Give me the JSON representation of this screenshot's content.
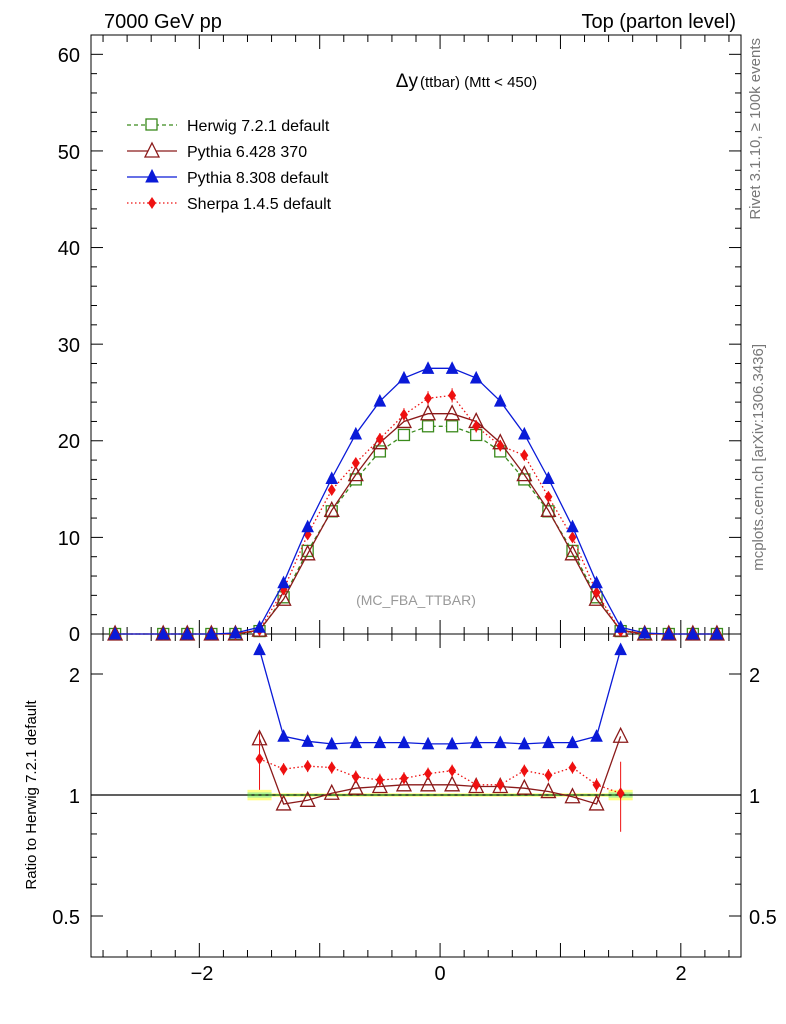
{
  "header": {
    "left": "7000 GeV pp",
    "right": "Top (parton level)"
  },
  "side_labels": {
    "rivet": "Rivet 3.1.10, ≥ 100k events",
    "mcplots": "mcplots.cern.ch [arXiv:1306.3436]"
  },
  "main_plot": {
    "title_symbol": "Δy",
    "title_rest": " (ttbar) (Mtt < 450)",
    "analysis_label": "(MC_FBA_TTBAR)",
    "y_ticks": [
      "0",
      "10",
      "20",
      "30",
      "40",
      "50",
      "60"
    ]
  },
  "ratio_plot": {
    "ylabel": "Ratio to Herwig 7.2.1 default",
    "y_ticks": [
      "0.5",
      "1",
      "2"
    ],
    "y_ticks_right": [
      "0.5",
      "1",
      "2"
    ]
  },
  "x_ticks": [
    "−2",
    "0",
    "2"
  ],
  "legend": [
    {
      "name": "Herwig 7.2.1 default",
      "color": "#3a8a1c",
      "marker": "open-square",
      "line": "dashed"
    },
    {
      "name": "Pythia 6.428 370",
      "color": "#8b1a1a",
      "marker": "open-triangle",
      "line": "solid"
    },
    {
      "name": "Pythia 8.308 default",
      "color": "#0a1ad8",
      "marker": "filled-triangle",
      "line": "solid"
    },
    {
      "name": "Sherpa 1.4.5 default",
      "color": "#ee1111",
      "marker": "filled-diamond",
      "line": "dotted"
    }
  ],
  "chart_data": {
    "type": "line",
    "title": "Δy (ttbar) (Mtt < 450)",
    "xlabel": "",
    "ylabel": "",
    "xlim": [
      -2.9,
      2.5
    ],
    "ylim": [
      0,
      62
    ],
    "x": [
      -2.7,
      -2.3,
      -2.1,
      -1.9,
      -1.7,
      -1.5,
      -1.3,
      -1.1,
      -0.9,
      -0.7,
      -0.5,
      -0.3,
      -0.1,
      0.1,
      0.3,
      0.5,
      0.7,
      0.9,
      1.1,
      1.3,
      1.5,
      1.7,
      1.9,
      2.1,
      2.3
    ],
    "series": [
      {
        "name": "Herwig 7.2.1 default",
        "values": [
          0,
          0,
          0,
          0,
          0,
          0.3,
          3.8,
          8.6,
          12.7,
          16.0,
          18.9,
          20.6,
          21.5,
          21.5,
          20.6,
          18.9,
          16.0,
          12.7,
          8.6,
          3.8,
          0.3,
          0,
          0,
          0,
          0
        ]
      },
      {
        "name": "Pythia 6.428 370",
        "values": [
          0,
          0,
          0,
          0,
          0,
          0.4,
          3.6,
          8.3,
          12.8,
          16.5,
          19.8,
          22.0,
          22.8,
          22.8,
          22.0,
          19.8,
          16.5,
          12.8,
          8.3,
          3.6,
          0.4,
          0,
          0,
          0,
          0
        ]
      },
      {
        "name": "Pythia 8.308 default",
        "values": [
          0,
          0,
          0,
          0,
          0.1,
          0.7,
          5.3,
          11.1,
          16.1,
          20.7,
          24.1,
          26.5,
          27.5,
          27.5,
          26.5,
          24.1,
          20.7,
          16.1,
          11.1,
          5.3,
          0.7,
          0.1,
          0,
          0,
          0
        ]
      },
      {
        "name": "Sherpa 1.4.5 default",
        "values": [
          0,
          0,
          0,
          0,
          0,
          0.4,
          4.6,
          10.3,
          14.9,
          17.7,
          20.2,
          22.7,
          24.4,
          24.7,
          21.5,
          19.5,
          18.5,
          14.2,
          10.0,
          4.3,
          0.3,
          0,
          0,
          0,
          0
        ]
      }
    ],
    "ratio": {
      "ylabel": "Ratio to Herwig 7.2.1 default",
      "ylim": [
        0.4,
        2.4
      ],
      "x": [
        -1.5,
        -1.3,
        -1.1,
        -0.9,
        -0.7,
        -0.5,
        -0.3,
        -0.1,
        0.1,
        0.3,
        0.5,
        0.7,
        0.9,
        1.1,
        1.3,
        1.5
      ],
      "series": [
        {
          "name": "Pythia 6.428 370",
          "values": [
            1.38,
            0.95,
            0.97,
            1.01,
            1.04,
            1.05,
            1.06,
            1.06,
            1.06,
            1.05,
            1.05,
            1.04,
            1.02,
            0.99,
            0.95,
            1.4
          ]
        },
        {
          "name": "Pythia 8.308 default",
          "values": [
            2.3,
            1.4,
            1.36,
            1.34,
            1.35,
            1.35,
            1.35,
            1.34,
            1.34,
            1.35,
            1.35,
            1.34,
            1.35,
            1.35,
            1.4,
            2.3
          ]
        },
        {
          "name": "Sherpa 1.4.5 default",
          "values": [
            1.23,
            1.16,
            1.18,
            1.17,
            1.11,
            1.09,
            1.1,
            1.13,
            1.15,
            1.06,
            1.06,
            1.15,
            1.12,
            1.17,
            1.06,
            1.01
          ]
        }
      ]
    }
  }
}
